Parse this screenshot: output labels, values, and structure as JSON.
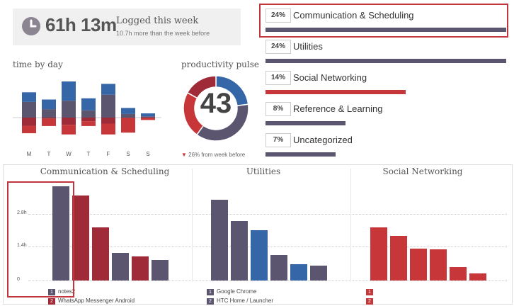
{
  "summary": {
    "time": "61h 13m",
    "logged_label": "Logged this week",
    "more_text": "10.7h more than the week before",
    "clock_icon": "clock-icon"
  },
  "colors": {
    "blue": "#3566a8",
    "slate": "#5b5570",
    "red": "#c7373a",
    "darkred": "#9e2b37"
  },
  "time_by_day": {
    "title": "time by day",
    "days": [
      "M",
      "T",
      "W",
      "T",
      "F",
      "S",
      "S"
    ],
    "above": [
      {
        "blue": 0.8,
        "slate": 1.3
      },
      {
        "blue": 0.8,
        "slate": 0.7
      },
      {
        "blue": 1.6,
        "slate": 1.4
      },
      {
        "blue": 1.0,
        "slate": 0.6
      },
      {
        "blue": 0.9,
        "slate": 1.9
      },
      {
        "blue": 0.5,
        "slate": 0.3
      },
      {
        "blue": 0.25,
        "slate": 0.1
      }
    ],
    "below": [
      {
        "darkred": 0.7,
        "red": 0.6
      },
      {
        "darkred": 0.1,
        "red": 0.6
      },
      {
        "darkred": 0.6,
        "red": 0.8
      },
      {
        "darkred": 0.3,
        "red": 0.4
      },
      {
        "darkred": 0.5,
        "red": 0.9
      },
      {
        "darkred": 0.05,
        "red": 1.2
      },
      {
        "darkred": 0.0,
        "red": 0.2
      }
    ]
  },
  "pulse": {
    "title": "productivity pulse",
    "value": "43",
    "note": "26% from week before",
    "segments": [
      {
        "color": "#3566a8",
        "fraction": 0.23
      },
      {
        "color": "#5b5570",
        "fraction": 0.37
      },
      {
        "color": "#c7373a",
        "fraction": 0.23
      },
      {
        "color": "#9e2b37",
        "fraction": 0.17
      }
    ]
  },
  "categories": [
    {
      "pct": "24%",
      "name": "Communication & Scheduling",
      "share": 0.24,
      "color": "#5b5570"
    },
    {
      "pct": "24%",
      "name": "Utilities",
      "share": 0.24,
      "color": "#5b5570"
    },
    {
      "pct": "14%",
      "name": "Social Networking",
      "share": 0.14,
      "color": "#c7373a"
    },
    {
      "pct": "8%",
      "name": "Reference & Learning",
      "share": 0.08,
      "color": "#5b5570"
    },
    {
      "pct": "7%",
      "name": "Uncategorized",
      "share": 0.07,
      "color": "#5b5570"
    }
  ],
  "breakdown": {
    "yticks": [
      "2.8h",
      "1.4h",
      "0"
    ],
    "columns": [
      {
        "title": "Communication & Scheduling",
        "bars": [
          {
            "value": 4.1,
            "color": "#5b5570"
          },
          {
            "value": 3.7,
            "color": "#9e2b37"
          },
          {
            "value": 2.3,
            "color": "#9e2b37"
          },
          {
            "value": 1.2,
            "color": "#5b5570"
          },
          {
            "value": 1.05,
            "color": "#9e2b37"
          },
          {
            "value": 0.9,
            "color": "#5b5570"
          }
        ],
        "legend": [
          {
            "num": "1",
            "text": "notes2",
            "color": "#5b5570"
          },
          {
            "num": "2",
            "text": "WhatsApp Messenger Android",
            "color": "#9e2b37"
          }
        ]
      },
      {
        "title": "Utilities",
        "bars": [
          {
            "value": 3.5,
            "color": "#5b5570"
          },
          {
            "value": 2.6,
            "color": "#5b5570"
          },
          {
            "value": 2.2,
            "color": "#3566a8"
          },
          {
            "value": 1.1,
            "color": "#5b5570"
          },
          {
            "value": 0.7,
            "color": "#3566a8"
          },
          {
            "value": 0.65,
            "color": "#5b5570"
          }
        ],
        "legend": [
          {
            "num": "1",
            "text": "Google Chrome",
            "color": "#5b5570"
          },
          {
            "num": "2",
            "text": "HTC Home / Launcher",
            "color": "#5b5570"
          }
        ]
      },
      {
        "title": "Social Networking",
        "bars": [
          {
            "value": 2.3,
            "color": "#c7373a"
          },
          {
            "value": 1.95,
            "color": "#c7373a"
          },
          {
            "value": 1.4,
            "color": "#c7373a"
          },
          {
            "value": 1.35,
            "color": "#c7373a"
          },
          {
            "value": 0.6,
            "color": "#c7373a"
          },
          {
            "value": 0.3,
            "color": "#c7373a"
          }
        ],
        "legend": [
          {
            "num": "1",
            "text": "",
            "color": "#c7373a"
          },
          {
            "num": "2",
            "text": "",
            "color": "#c7373a"
          }
        ]
      }
    ]
  }
}
